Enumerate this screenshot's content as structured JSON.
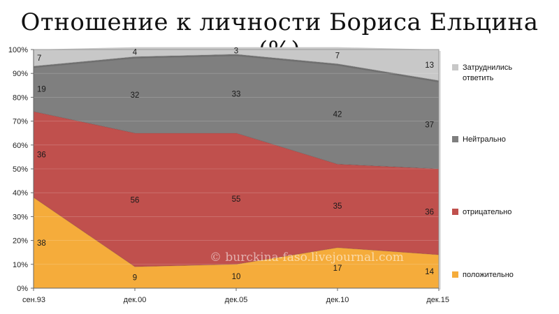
{
  "chart_data": {
    "type": "area",
    "stacked": true,
    "title": "Отношение к личности Бориса Ельцина (%)",
    "categories": [
      "сен.93",
      "дек.00",
      "дек.05",
      "дек.10",
      "дек.15"
    ],
    "y_ticks": [
      "0%",
      "10%",
      "20%",
      "30%",
      "40%",
      "50%",
      "60%",
      "70%",
      "80%",
      "90%",
      "100%"
    ],
    "ylim": [
      0,
      100
    ],
    "legend_position": "right",
    "series": [
      {
        "name": "положительно",
        "values": [
          38,
          9,
          10,
          17,
          14
        ],
        "color": "#F5AC3B"
      },
      {
        "name": "отрицательно",
        "values": [
          36,
          56,
          55,
          35,
          36
        ],
        "color": "#C0504D"
      },
      {
        "name": "Нейтрально",
        "values": [
          19,
          32,
          33,
          42,
          37
        ],
        "color": "#7F7F7F"
      },
      {
        "name": "Затруднились ответить",
        "values": [
          7,
          4,
          3,
          7,
          13
        ],
        "color": "#C8C8C8"
      }
    ],
    "legend_lines": [
      [
        "Затруднились",
        "ответить"
      ],
      [
        "Нейтрально"
      ],
      [
        "отрицательно"
      ],
      [
        "положительно"
      ]
    ],
    "watermark": "© burckina-faso.livejournal.com"
  }
}
